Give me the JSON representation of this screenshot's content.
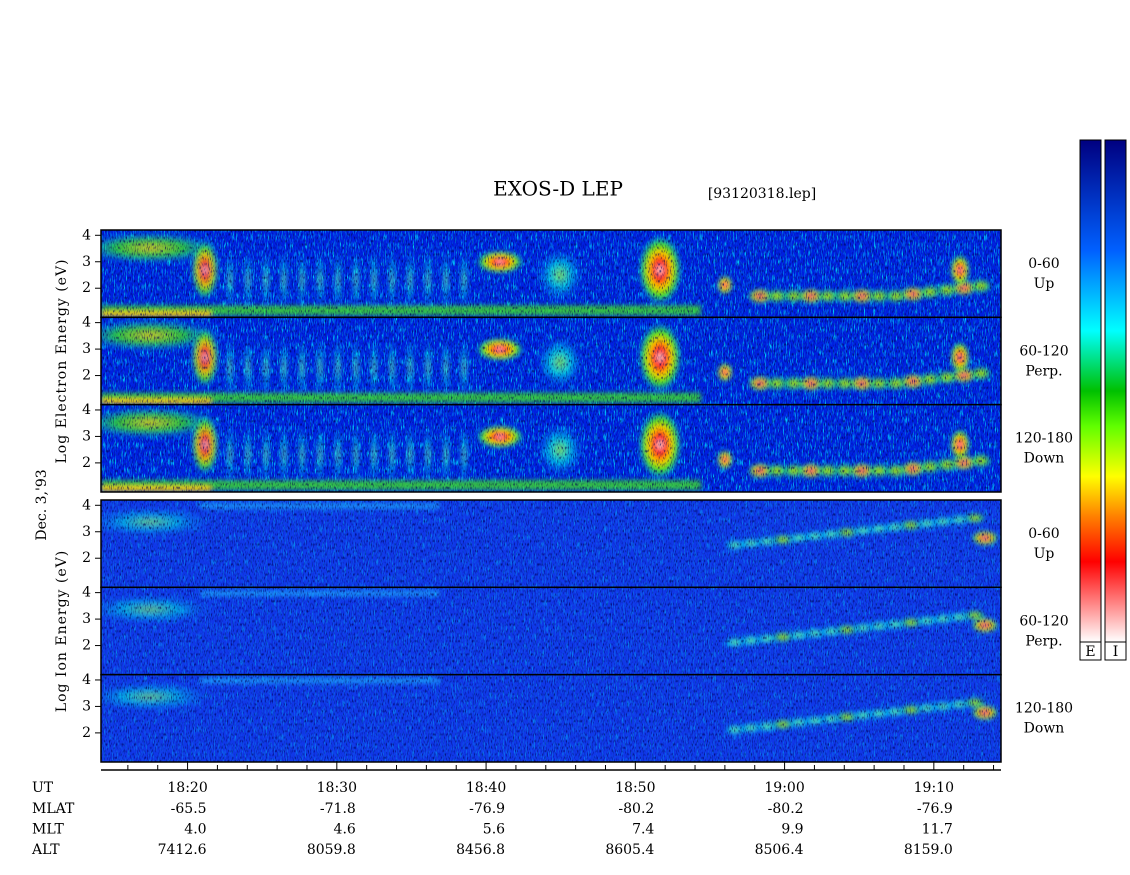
{
  "chart_data": {
    "type": "spectrogram",
    "title": "EXOS-D LEP",
    "subtitle": "[93120318.lep]",
    "date_label": "Dec. 3,'93",
    "groups": [
      {
        "ylabel": "Log Electron Energy (eV)",
        "panels": [
          {
            "pitch": "0-60",
            "direction": "Up"
          },
          {
            "pitch": "60-120",
            "direction": "Perp."
          },
          {
            "pitch": "120-180",
            "direction": "Down"
          }
        ]
      },
      {
        "ylabel": "Log Ion Energy (eV)",
        "panels": [
          {
            "pitch": "0-60",
            "direction": "Up"
          },
          {
            "pitch": "60-120",
            "direction": "Perp."
          },
          {
            "pitch": "120-180",
            "direction": "Down"
          }
        ]
      }
    ],
    "ylim": [
      0.9,
      4.2
    ],
    "yticks": [
      2,
      3,
      4
    ],
    "xlim": [
      14.2,
      74.5
    ],
    "xticks": [
      {
        "value": 20,
        "label": "18:20"
      },
      {
        "value": 30,
        "label": "18:30"
      },
      {
        "value": 40,
        "label": "18:40"
      },
      {
        "value": 50,
        "label": "18:50"
      },
      {
        "value": 60,
        "label": "19:00"
      },
      {
        "value": 70,
        "label": "19:10"
      }
    ],
    "minor_xticks": [
      16,
      18,
      22,
      24,
      26,
      28,
      32,
      34,
      36,
      38,
      42,
      44,
      46,
      48,
      52,
      54,
      56,
      58,
      62,
      64,
      66,
      68,
      72,
      74
    ],
    "x_label": "UT",
    "ephemeris": [
      {
        "label": "MLAT",
        "values": [
          "-65.5",
          "-71.8",
          "-76.9",
          "-80.2",
          "-80.2",
          "-76.9"
        ]
      },
      {
        "label": "MLT",
        "values": [
          "4.0",
          "4.6",
          "5.6",
          "7.4",
          "9.9",
          "11.7"
        ]
      },
      {
        "label": "ALT",
        "values": [
          "7412.6",
          "8059.8",
          "8456.8",
          "8605.4",
          "8506.4",
          "8159.0"
        ]
      }
    ],
    "colorbar": {
      "labels": [
        "E",
        "I"
      ]
    }
  }
}
